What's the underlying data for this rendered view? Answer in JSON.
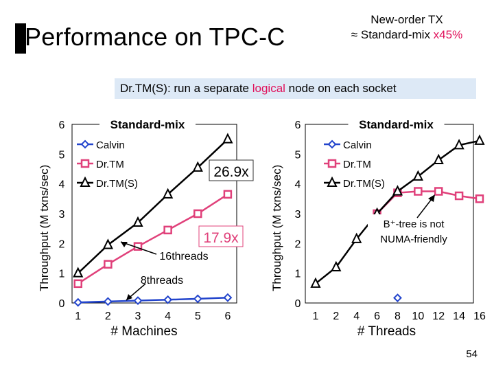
{
  "slide": {
    "title": "Performance on TPC-C",
    "corner_line1": "New-order TX",
    "corner_line2_prefix": "≈ Standard-mix ",
    "corner_line2_accent": "x45%",
    "subtitle_prefix": "Dr.TM(S)",
    "subtitle_mid": ": run a separate ",
    "subtitle_accent": "logical",
    "subtitle_suffix": " node on each socket",
    "page_number": "54"
  },
  "colors": {
    "blue": "#2244cc",
    "pink": "#e0407a",
    "black": "#000000",
    "accent": "#e0105a",
    "banner": "#dde9f6"
  },
  "chart_data": [
    {
      "type": "line",
      "title": "Standard-mix",
      "xlabel": "# Machines",
      "ylabel": "Throughput (M txns/sec)",
      "ylim": [
        0,
        6
      ],
      "x": [
        1,
        2,
        3,
        4,
        5,
        6
      ],
      "xticks": [
        "1",
        "2",
        "3",
        "4",
        "5",
        "6"
      ],
      "yticks": [
        "0",
        "1",
        "2",
        "3",
        "4",
        "5",
        "6"
      ],
      "legend_position": "top-left",
      "series": [
        {
          "name": "Calvin",
          "marker": "diamond",
          "color": "#2244cc",
          "values": [
            0.02,
            0.05,
            0.08,
            0.11,
            0.14,
            0.18
          ]
        },
        {
          "name": "Dr.TM",
          "marker": "square",
          "color": "#e0407a",
          "values": [
            0.65,
            1.3,
            1.9,
            2.45,
            3.0,
            3.65
          ]
        },
        {
          "name": "Dr.TM(S)",
          "marker": "triangle",
          "color": "#000000",
          "values": [
            1.0,
            1.95,
            2.7,
            3.65,
            4.55,
            5.5
          ]
        }
      ],
      "annotations": [
        {
          "text": "26.9x",
          "style": "boxed"
        },
        {
          "text": "17.9x",
          "style": "boxed-pink"
        },
        {
          "text": "16threads"
        },
        {
          "text": "8threads"
        }
      ]
    },
    {
      "type": "line",
      "title": "Standard-mix",
      "xlabel": "# Threads",
      "ylabel": "Throughput (M txns/sec)",
      "ylim": [
        0,
        6
      ],
      "x": [
        1,
        2,
        4,
        6,
        8,
        10,
        12,
        14,
        16
      ],
      "xticks": [
        "1",
        "2",
        "4",
        "6",
        "8",
        "10",
        "12",
        "14",
        "16"
      ],
      "yticks": [
        "0",
        "1",
        "2",
        "3",
        "4",
        "5",
        "6"
      ],
      "legend_position": "top-right",
      "series": [
        {
          "name": "Calvin",
          "marker": "diamond",
          "color": "#2244cc",
          "x": [
            8
          ],
          "values": [
            0.17
          ]
        },
        {
          "name": "Dr.TM",
          "marker": "square",
          "color": "#e0407a",
          "x": [
            6,
            8,
            10,
            12,
            14,
            16
          ],
          "values": [
            3.0,
            3.7,
            3.75,
            3.75,
            3.6,
            3.5
          ]
        },
        {
          "name": "Dr.TM(S)",
          "marker": "triangle",
          "color": "#000000",
          "x": [
            1,
            2,
            4,
            6,
            8,
            10,
            12,
            14,
            16
          ],
          "values": [
            0.65,
            1.2,
            2.15,
            3.0,
            3.75,
            4.25,
            4.8,
            5.3,
            5.45
          ]
        }
      ],
      "annotations": [
        {
          "text": "B⁺-tree is not NUMA-friendly"
        }
      ]
    }
  ]
}
